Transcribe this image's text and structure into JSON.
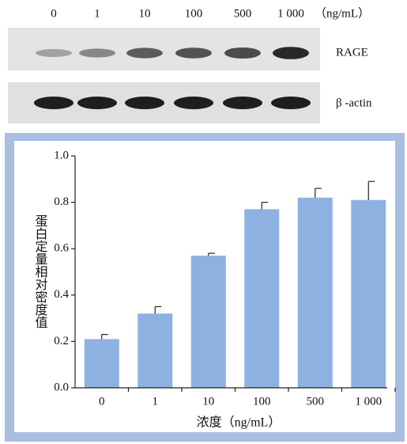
{
  "blot": {
    "lanes": [
      "0",
      "1",
      "10",
      "100",
      "500",
      "1 000"
    ],
    "unit": "（ng/mL）",
    "rows": [
      "RAGE",
      "β -actin"
    ]
  },
  "chart_data": {
    "type": "bar",
    "categories": [
      "0",
      "1",
      "10",
      "100",
      "500",
      "1 000"
    ],
    "values": [
      0.21,
      0.32,
      0.57,
      0.77,
      0.82,
      0.81
    ],
    "errors": [
      0.02,
      0.03,
      0.01,
      0.03,
      0.04,
      0.08
    ],
    "color": "#8db1e0",
    "y_label": "蛋白定量相对密度值",
    "x_label": "浓度（ng/mL）",
    "ylim": [
      0,
      1.0
    ],
    "yticks": [
      {
        "value": 0,
        "label": "0.0"
      },
      0.2,
      0.4,
      0.6,
      0.8,
      {
        "value": 1.0,
        "label": "1.0"
      }
    ]
  }
}
